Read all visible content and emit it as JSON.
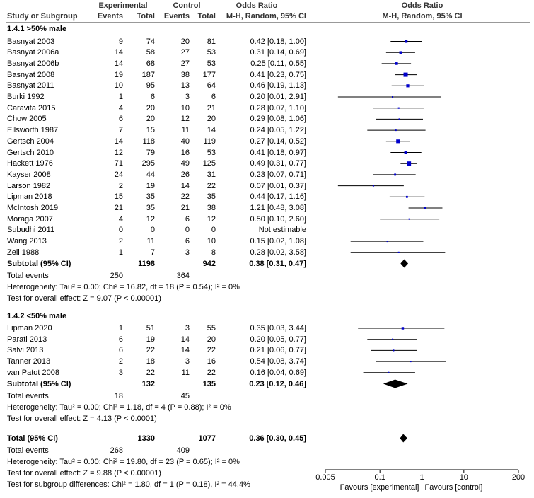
{
  "header": {
    "col_study": "Study or Subgroup",
    "experimental": "Experimental",
    "control": "Control",
    "events": "Events",
    "total": "Total",
    "odds_ratio": "Odds Ratio",
    "method": "M-H, Random, 95% CI"
  },
  "groups": [
    {
      "title": "1.4.1 >50% male",
      "studies": [
        {
          "name": "Basnyat 2003",
          "ee": "9",
          "et": "74",
          "ce": "20",
          "ct": "81",
          "ci": "0.42 [0.18, 1.00]",
          "or": 0.42,
          "lo": 0.18,
          "hi": 1.0
        },
        {
          "name": "Basnyat 2006a",
          "ee": "14",
          "et": "58",
          "ce": "27",
          "ct": "53",
          "ci": "0.31 [0.14, 0.69]",
          "or": 0.31,
          "lo": 0.14,
          "hi": 0.69
        },
        {
          "name": "Basnyat 2006b",
          "ee": "14",
          "et": "68",
          "ce": "27",
          "ct": "53",
          "ci": "0.25 [0.11, 0.55]",
          "or": 0.25,
          "lo": 0.11,
          "hi": 0.55
        },
        {
          "name": "Basnyat 2008",
          "ee": "19",
          "et": "187",
          "ce": "38",
          "ct": "177",
          "ci": "0.41 [0.23, 0.75]",
          "or": 0.41,
          "lo": 0.23,
          "hi": 0.75
        },
        {
          "name": "Basnyat 2011",
          "ee": "10",
          "et": "95",
          "ce": "13",
          "ct": "64",
          "ci": "0.46 [0.19, 1.13]",
          "or": 0.46,
          "lo": 0.19,
          "hi": 1.13
        },
        {
          "name": "Burki 1992",
          "ee": "1",
          "et": "6",
          "ce": "3",
          "ct": "6",
          "ci": "0.20 [0.01, 2.91]",
          "or": 0.2,
          "lo": 0.01,
          "hi": 2.91
        },
        {
          "name": "Caravita 2015",
          "ee": "4",
          "et": "20",
          "ce": "10",
          "ct": "21",
          "ci": "0.28 [0.07, 1.10]",
          "or": 0.28,
          "lo": 0.07,
          "hi": 1.1
        },
        {
          "name": "Chow 2005",
          "ee": "6",
          "et": "20",
          "ce": "12",
          "ct": "20",
          "ci": "0.29 [0.08, 1.06]",
          "or": 0.29,
          "lo": 0.08,
          "hi": 1.06
        },
        {
          "name": "Ellsworth 1987",
          "ee": "7",
          "et": "15",
          "ce": "11",
          "ct": "14",
          "ci": "0.24 [0.05, 1.22]",
          "or": 0.24,
          "lo": 0.05,
          "hi": 1.22
        },
        {
          "name": "Gertsch 2004",
          "ee": "14",
          "et": "118",
          "ce": "40",
          "ct": "119",
          "ci": "0.27 [0.14, 0.52]",
          "or": 0.27,
          "lo": 0.14,
          "hi": 0.52
        },
        {
          "name": "Gertsch 2010",
          "ee": "12",
          "et": "79",
          "ce": "16",
          "ct": "53",
          "ci": "0.41 [0.18, 0.97]",
          "or": 0.41,
          "lo": 0.18,
          "hi": 0.97
        },
        {
          "name": "Hackett 1976",
          "ee": "71",
          "et": "295",
          "ce": "49",
          "ct": "125",
          "ci": "0.49 [0.31, 0.77]",
          "or": 0.49,
          "lo": 0.31,
          "hi": 0.77
        },
        {
          "name": "Kayser 2008",
          "ee": "24",
          "et": "44",
          "ce": "26",
          "ct": "31",
          "ci": "0.23 [0.07, 0.71]",
          "or": 0.23,
          "lo": 0.07,
          "hi": 0.71
        },
        {
          "name": "Larson 1982",
          "ee": "2",
          "et": "19",
          "ce": "14",
          "ct": "22",
          "ci": "0.07 [0.01, 0.37]",
          "or": 0.07,
          "lo": 0.01,
          "hi": 0.37
        },
        {
          "name": "Lipman 2018",
          "ee": "15",
          "et": "35",
          "ce": "22",
          "ct": "35",
          "ci": "0.44 [0.17, 1.16]",
          "or": 0.44,
          "lo": 0.17,
          "hi": 1.16
        },
        {
          "name": "McIntosh 2019",
          "ee": "21",
          "et": "35",
          "ce": "21",
          "ct": "38",
          "ci": "1.21 [0.48, 3.08]",
          "or": 1.21,
          "lo": 0.48,
          "hi": 3.08
        },
        {
          "name": "Moraga 2007",
          "ee": "4",
          "et": "12",
          "ce": "6",
          "ct": "12",
          "ci": "0.50 [0.10, 2.60]",
          "or": 0.5,
          "lo": 0.1,
          "hi": 2.6
        },
        {
          "name": "Subudhi 2011",
          "ee": "0",
          "et": "0",
          "ce": "0",
          "ct": "0",
          "ci": "Not estimable",
          "or": null,
          "lo": null,
          "hi": null
        },
        {
          "name": "Wang 2013",
          "ee": "2",
          "et": "11",
          "ce": "6",
          "ct": "10",
          "ci": "0.15 [0.02, 1.08]",
          "or": 0.15,
          "lo": 0.02,
          "hi": 1.08
        },
        {
          "name": "Zell 1988",
          "ee": "1",
          "et": "7",
          "ce": "3",
          "ct": "8",
          "ci": "0.28 [0.02, 3.58]",
          "or": 0.28,
          "lo": 0.02,
          "hi": 3.58
        }
      ],
      "subtotal": {
        "label": "Subtotal (95% CI)",
        "et": "1198",
        "ct": "942",
        "ci": "0.38 [0.31, 0.47]",
        "or": 0.38,
        "lo": 0.31,
        "hi": 0.47
      },
      "total_events": {
        "label": "Total events",
        "ee": "250",
        "ce": "364"
      },
      "heterogeneity": "Heterogeneity: Tau² = 0.00; Chi² = 16.82, df = 18 (P = 0.54); I² = 0%",
      "overall": "Test for overall effect: Z = 9.07 (P < 0.00001)"
    },
    {
      "title": "1.4.2 <50% male",
      "studies": [
        {
          "name": "Lipman 2020",
          "ee": "1",
          "et": "51",
          "ce": "3",
          "ct": "55",
          "ci": "0.35 [0.03, 3.44]",
          "or": 0.35,
          "lo": 0.03,
          "hi": 3.44
        },
        {
          "name": "Parati 2013",
          "ee": "6",
          "et": "19",
          "ce": "14",
          "ct": "20",
          "ci": "0.20 [0.05, 0.77]",
          "or": 0.2,
          "lo": 0.05,
          "hi": 0.77
        },
        {
          "name": "Salvi 2013",
          "ee": "6",
          "et": "22",
          "ce": "14",
          "ct": "22",
          "ci": "0.21 [0.06, 0.77]",
          "or": 0.21,
          "lo": 0.06,
          "hi": 0.77
        },
        {
          "name": "Tanner 2013",
          "ee": "2",
          "et": "18",
          "ce": "3",
          "ct": "16",
          "ci": "0.54 [0.08, 3.74]",
          "or": 0.54,
          "lo": 0.08,
          "hi": 3.74
        },
        {
          "name": "van Patot 2008",
          "ee": "3",
          "et": "22",
          "ce": "11",
          "ct": "22",
          "ci": "0.16 [0.04, 0.69]",
          "or": 0.16,
          "lo": 0.04,
          "hi": 0.69
        }
      ],
      "subtotal": {
        "label": "Subtotal (95% CI)",
        "et": "132",
        "ct": "135",
        "ci": "0.23 [0.12, 0.46]",
        "or": 0.23,
        "lo": 0.12,
        "hi": 0.46
      },
      "total_events": {
        "label": "Total events",
        "ee": "18",
        "ce": "45"
      },
      "heterogeneity": "Heterogeneity: Tau² = 0.00; Chi² = 1.18, df = 4 (P = 0.88); I² = 0%",
      "overall": "Test for overall effect: Z = 4.13 (P < 0.0001)"
    }
  ],
  "total": {
    "label": "Total (95% CI)",
    "et": "1330",
    "ct": "1077",
    "ci": "0.36 [0.30, 0.45]",
    "or": 0.36,
    "lo": 0.3,
    "hi": 0.45,
    "events_label": "Total events",
    "ee": "268",
    "ce": "409",
    "heterogeneity": "Heterogeneity: Tau² = 0.00; Chi² = 19.80, df = 23 (P = 0.65); I² = 0%",
    "overall": "Test for overall effect: Z = 9.88 (P < 0.00001)",
    "subgroup": "Test for subgroup differences: Chi² = 1.80, df = 1 (P = 0.18), I² = 44.4%"
  },
  "chart_data": {
    "type": "forest",
    "title": "Odds Ratio",
    "xlabel": "M-H, Random, 95% CI",
    "scale": "log",
    "xlim": [
      0.005,
      200
    ],
    "ticks": [
      0.005,
      0.1,
      1,
      10,
      200
    ],
    "tick_labels": [
      "0.005",
      "0.1",
      "1",
      "10",
      "200"
    ],
    "favours_left": "Favours [experimental]",
    "favours_right": "Favours [control]",
    "marker_color": "#0000CC"
  }
}
